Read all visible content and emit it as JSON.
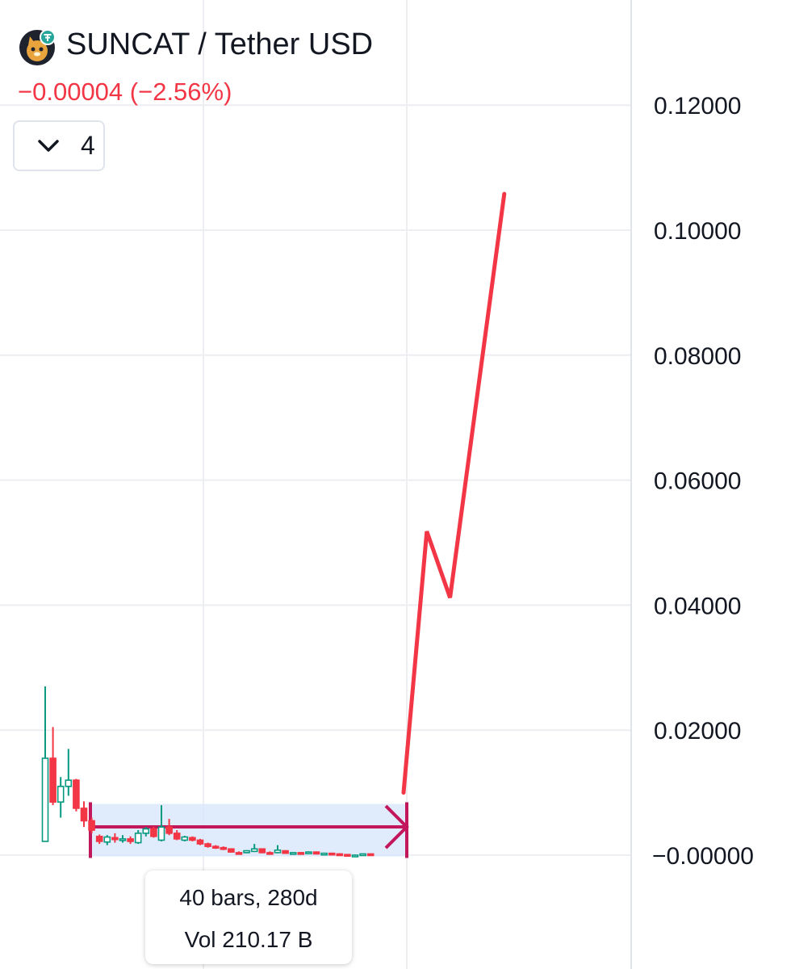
{
  "header": {
    "pair": "SUNCAT / Tether USD",
    "change": "−0.00004 (−2.56%)",
    "logo_icon": "suncat-logo-icon"
  },
  "indicators_toggle": {
    "icon": "chevron-down-icon",
    "count": "4"
  },
  "measure_tooltip": {
    "line1": "40 bars, 280d",
    "line2": "Vol 210.17 B"
  },
  "chart_data": {
    "type": "candlestick",
    "y_axis": {
      "position": "right",
      "ticks": [
        "0.12000",
        "0.10000",
        "0.08000",
        "0.06000",
        "0.04000",
        "0.02000",
        "−0.00000"
      ],
      "range": [
        -0.0002,
        0.1205
      ]
    },
    "grid": true,
    "colors": {
      "up": "#089981",
      "down": "#f23645",
      "measure": "#c2185b",
      "measure_fill": "#dbe7fc",
      "arrow_line": "#f23645"
    },
    "candles": [
      {
        "o": 0.0022,
        "h": 0.027,
        "l": 0.0022,
        "c": 0.0155
      },
      {
        "o": 0.0155,
        "h": 0.0205,
        "l": 0.008,
        "c": 0.0085
      },
      {
        "o": 0.0085,
        "h": 0.0125,
        "l": 0.006,
        "c": 0.011
      },
      {
        "o": 0.011,
        "h": 0.017,
        "l": 0.0095,
        "c": 0.012
      },
      {
        "o": 0.012,
        "h": 0.0122,
        "l": 0.007,
        "c": 0.0075
      },
      {
        "o": 0.0075,
        "h": 0.0086,
        "l": 0.0045,
        "c": 0.0055
      },
      {
        "o": 0.0055,
        "h": 0.006,
        "l": 0.0035,
        "c": 0.004
      },
      {
        "o": 0.003,
        "h": 0.0033,
        "l": 0.0018,
        "c": 0.0022
      },
      {
        "o": 0.0021,
        "h": 0.0032,
        "l": 0.0016,
        "c": 0.0029
      },
      {
        "o": 0.0028,
        "h": 0.0035,
        "l": 0.002,
        "c": 0.0025
      },
      {
        "o": 0.0025,
        "h": 0.0032,
        "l": 0.002,
        "c": 0.0026
      },
      {
        "o": 0.0026,
        "h": 0.003,
        "l": 0.0018,
        "c": 0.0022
      },
      {
        "o": 0.002,
        "h": 0.004,
        "l": 0.0018,
        "c": 0.0035
      },
      {
        "o": 0.0035,
        "h": 0.0045,
        "l": 0.003,
        "c": 0.0042
      },
      {
        "o": 0.0042,
        "h": 0.0046,
        "l": 0.0028,
        "c": 0.003
      },
      {
        "o": 0.0024,
        "h": 0.008,
        "l": 0.0022,
        "c": 0.0045
      },
      {
        "o": 0.0045,
        "h": 0.0058,
        "l": 0.0032,
        "c": 0.0035
      },
      {
        "o": 0.0035,
        "h": 0.004,
        "l": 0.0024,
        "c": 0.0026
      },
      {
        "o": 0.0024,
        "h": 0.0031,
        "l": 0.0022,
        "c": 0.0029
      },
      {
        "o": 0.0028,
        "h": 0.003,
        "l": 0.0022,
        "c": 0.0024
      },
      {
        "o": 0.0024,
        "h": 0.0026,
        "l": 0.0016,
        "c": 0.0018
      },
      {
        "o": 0.0018,
        "h": 0.002,
        "l": 0.0012,
        "c": 0.0014
      },
      {
        "o": 0.0014,
        "h": 0.0016,
        "l": 0.001,
        "c": 0.0012
      },
      {
        "o": 0.0012,
        "h": 0.0014,
        "l": 0.0008,
        "c": 0.001
      },
      {
        "o": 0.001,
        "h": 0.0011,
        "l": 0.0004,
        "c": 0.0005
      },
      {
        "o": 0.0004,
        "h": 0.0006,
        "l": 0.0002,
        "c": 0.0003
      },
      {
        "o": 0.0004,
        "h": 0.0008,
        "l": 0.0003,
        "c": 0.0007
      },
      {
        "o": 0.0006,
        "h": 0.0018,
        "l": 0.0005,
        "c": 0.001
      },
      {
        "o": 0.001,
        "h": 0.0011,
        "l": 0.0003,
        "c": 0.0004
      },
      {
        "o": 0.0004,
        "h": 0.0006,
        "l": 0.0002,
        "c": 0.0003
      },
      {
        "o": 0.0004,
        "h": 0.0016,
        "l": 0.0003,
        "c": 0.0008
      },
      {
        "o": 0.0007,
        "h": 0.0008,
        "l": 0.0002,
        "c": 0.0003
      },
      {
        "o": 0.0003,
        "h": 0.0005,
        "l": 0.0002,
        "c": 0.0004
      },
      {
        "o": 0.0004,
        "h": 0.0005,
        "l": 0.0002,
        "c": 0.0003
      },
      {
        "o": 0.0003,
        "h": 0.0006,
        "l": 0.0002,
        "c": 0.0005
      },
      {
        "o": 0.0005,
        "h": 0.0006,
        "l": 0.0001,
        "c": 0.0002
      },
      {
        "o": 0.0002,
        "h": 0.0004,
        "l": 0.0001,
        "c": 0.0003
      },
      {
        "o": 0.0003,
        "h": 0.0004,
        "l": 0.0001,
        "c": 0.0002
      },
      {
        "o": 0.0002,
        "h": 0.0003,
        "l": 0.0,
        "c": 0.0001
      },
      {
        "o": 0.0001,
        "h": 0.0002,
        "l": -0.0001,
        "c": 0.0
      },
      {
        "o": 0.0,
        "h": 0.0001,
        "l": -0.0001,
        "c": 0.0
      },
      {
        "o": 0.0001,
        "h": 0.0002,
        "l": 0.0,
        "c": 0.0002
      },
      {
        "o": 0.0002,
        "h": 0.0002,
        "l": 0.0,
        "c": 0.0001
      }
    ],
    "measure_range": {
      "from_bar": 5,
      "to_bar": 45,
      "low": -0.0002,
      "high": 0.0082
    },
    "projection_line": [
      {
        "bar": 45,
        "price": 0.01
      },
      {
        "bar": 48,
        "price": 0.0518
      },
      {
        "bar": 51,
        "price": 0.0412
      },
      {
        "bar": 58,
        "price": 0.1058
      }
    ]
  }
}
